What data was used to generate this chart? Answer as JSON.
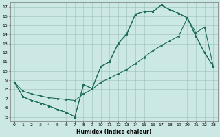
{
  "xlabel": "Humidex (Indice chaleur)",
  "bg_color": "#cce8e4",
  "line_color": "#1a6b5a",
  "xlim": [
    -0.5,
    23.5
  ],
  "ylim": [
    4.5,
    17.5
  ],
  "xticks": [
    0,
    1,
    2,
    3,
    4,
    5,
    6,
    7,
    8,
    9,
    10,
    11,
    12,
    13,
    14,
    15,
    16,
    17,
    18,
    19,
    20,
    21,
    22,
    23
  ],
  "yticks": [
    5,
    6,
    7,
    8,
    9,
    10,
    11,
    12,
    13,
    14,
    15,
    16,
    17
  ],
  "curve1_x": [
    0,
    1,
    2,
    3,
    4,
    5,
    6,
    7,
    8,
    9,
    10,
    11,
    12,
    13,
    14,
    15,
    16,
    17,
    18,
    19,
    20,
    21,
    22,
    23
  ],
  "curve1_y": [
    8.8,
    7.2,
    6.8,
    6.5,
    6.2,
    5.8,
    5.5,
    5.0,
    8.5,
    8.1,
    10.5,
    11.0,
    13.0,
    14.0,
    16.2,
    16.5,
    16.5,
    17.2,
    16.7,
    16.3,
    15.8,
    13.8,
    12.0,
    10.5
  ],
  "curve2_x": [
    0,
    1,
    2,
    3,
    4,
    5,
    6,
    7,
    8,
    9,
    10,
    11,
    12,
    13,
    14,
    15,
    16,
    17,
    18,
    19,
    20,
    21,
    22,
    23
  ],
  "curve2_y": [
    8.8,
    7.2,
    6.8,
    6.5,
    6.2,
    5.8,
    5.5,
    5.0,
    8.5,
    8.1,
    10.5,
    11.0,
    13.0,
    14.1,
    16.2,
    16.5,
    16.5,
    17.2,
    16.7,
    16.3,
    15.8,
    13.8,
    12.0,
    10.5
  ],
  "curve3_x": [
    0,
    1,
    2,
    3,
    4,
    5,
    6,
    7,
    8,
    9,
    10,
    11,
    12,
    13,
    14,
    15,
    16,
    17,
    18,
    19,
    20,
    21,
    22,
    23
  ],
  "curve3_y": [
    8.8,
    7.8,
    7.5,
    7.3,
    7.1,
    7.0,
    6.9,
    6.8,
    7.5,
    8.0,
    8.8,
    9.2,
    9.7,
    10.2,
    10.8,
    11.5,
    12.2,
    12.8,
    13.3,
    13.8,
    15.8,
    14.2,
    14.8,
    10.5
  ]
}
